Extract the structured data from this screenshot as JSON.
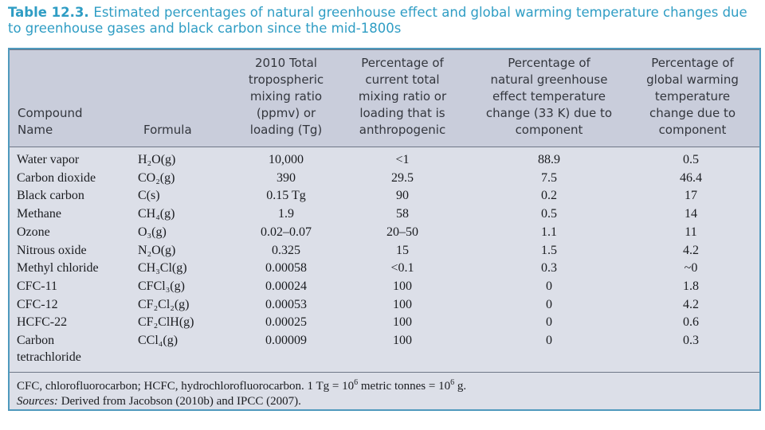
{
  "caption": {
    "label": "Table 12.3.",
    "text": "Estimated percentages of natural greenhouse effect and global warming temperature changes due to greenhouse gases and black carbon since the mid-1800s"
  },
  "headers": {
    "name": "Compound\nName",
    "formula": "Formula",
    "ratio": "2010 Total\ntropospheric\nmixing ratio\n(ppmv) or\nloading (Tg)",
    "pct": "Percentage of\ncurrent total\nmixing ratio or\nloading that is\nanthropogenic",
    "nat": "Percentage of\nnatural greenhouse\neffect temperature\nchange (33 K) due to\ncomponent",
    "glob": "Percentage of\nglobal warming\ntemperature\nchange due to\ncomponent"
  },
  "rows": [
    {
      "name": "Water vapor",
      "formula": "H₂O(g)",
      "ratio": "10,000",
      "pct": "<1",
      "nat": "88.9",
      "glob": "0.5"
    },
    {
      "name": "Carbon dioxide",
      "formula": "CO₂(g)",
      "ratio": "390",
      "pct": "29.5",
      "nat": "7.5",
      "glob": "46.4"
    },
    {
      "name": "Black carbon",
      "formula": "C(s)",
      "ratio": "0.15 Tg",
      "pct": "90",
      "nat": "0.2",
      "glob": "17"
    },
    {
      "name": "Methane",
      "formula": "CH₄(g)",
      "ratio": "1.9",
      "pct": "58",
      "nat": "0.5",
      "glob": "14"
    },
    {
      "name": "Ozone",
      "formula": "O₃(g)",
      "ratio": "0.02–0.07",
      "pct": "20–50",
      "nat": "1.1",
      "glob": "11"
    },
    {
      "name": "Nitrous oxide",
      "formula": "N₂O(g)",
      "ratio": "0.325",
      "pct": "15",
      "nat": "1.5",
      "glob": "4.2"
    },
    {
      "name": "Methyl chloride",
      "formula": "CH₃Cl(g)",
      "ratio": "0.00058",
      "pct": "<0.1",
      "nat": "0.3",
      "glob": "~0"
    },
    {
      "name": "CFC-11",
      "formula": "CFCl₃(g)",
      "ratio": "0.00024",
      "pct": "100",
      "nat": "0",
      "glob": "1.8"
    },
    {
      "name": "CFC-12",
      "formula": "CF₂Cl₂(g)",
      "ratio": "0.00053",
      "pct": "100",
      "nat": "0",
      "glob": "4.2"
    },
    {
      "name": "HCFC-22",
      "formula": "CF₂ClH(g)",
      "ratio": "0.00025",
      "pct": "100",
      "nat": "0",
      "glob": "0.6"
    },
    {
      "name": "Carbon",
      "formula": "CCl₄(g)",
      "ratio": "0.00009",
      "pct": "100",
      "nat": "0",
      "glob": "0.3"
    }
  ],
  "row_continuation": "tetrachloride",
  "footnote": {
    "abbrev": "CFC, chlorofluorocarbon; HCFC, hydrochlorofluorocarbon. 1 Tg = 10",
    "exp1": "6",
    "mid": " metric tonnes = 10",
    "exp2": "6",
    "end": " g.",
    "sources_label": "Sources:",
    "sources_text": "Derived from Jacobson (2010b) and IPCC (2007)."
  }
}
